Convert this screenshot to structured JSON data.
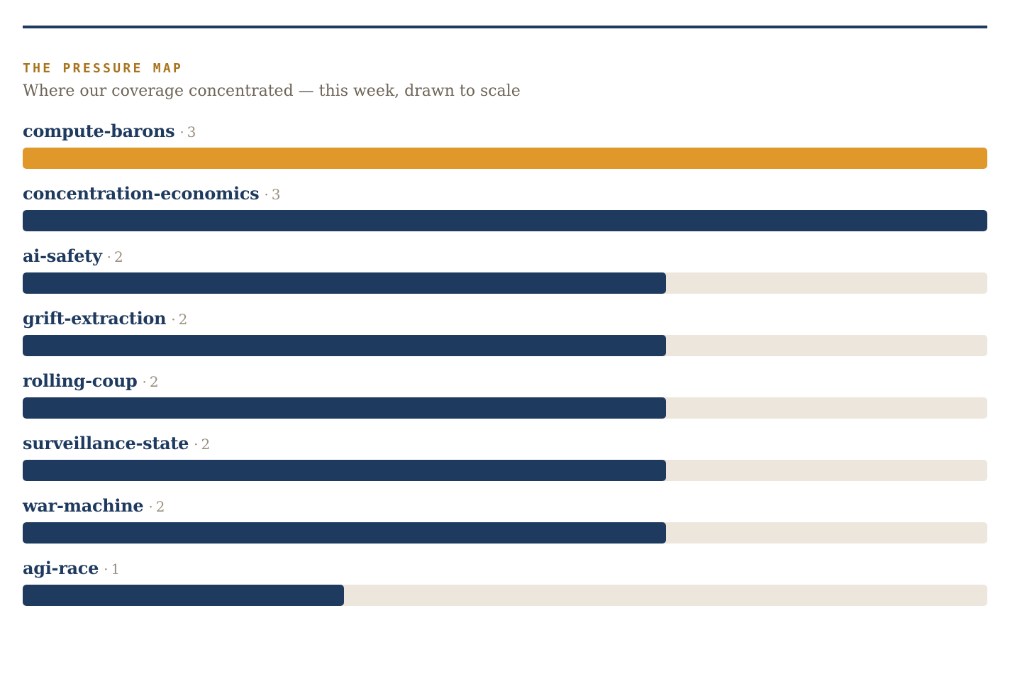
{
  "header": {
    "kicker": "THE PRESSURE MAP",
    "subtitle": "Where our coverage concentrated — this week, drawn to scale"
  },
  "colors": {
    "rule": "#1f3a5f",
    "bar": "#1f3a5f",
    "highlight_bar": "#e0982b",
    "track": "#ede6dc",
    "kicker": "#a8741e",
    "label": "#1f3a5f",
    "count": "#9a8f7f"
  },
  "chart_data": {
    "type": "bar",
    "orientation": "horizontal",
    "title": "THE PRESSURE MAP",
    "subtitle": "Where our coverage concentrated — this week, drawn to scale",
    "xlim": [
      0,
      3
    ],
    "grid": false,
    "highlight_index": 0,
    "categories": [
      "compute-barons",
      "concentration-economics",
      "ai-safety",
      "grift-extraction",
      "rolling-coup",
      "surveillance-state",
      "war-machine",
      "agi-race"
    ],
    "values": [
      3,
      3,
      2,
      2,
      2,
      2,
      2,
      1
    ],
    "value_labels": [
      "3",
      "3",
      "2",
      "2",
      "2",
      "2",
      "2",
      "1"
    ],
    "separator": "·"
  }
}
